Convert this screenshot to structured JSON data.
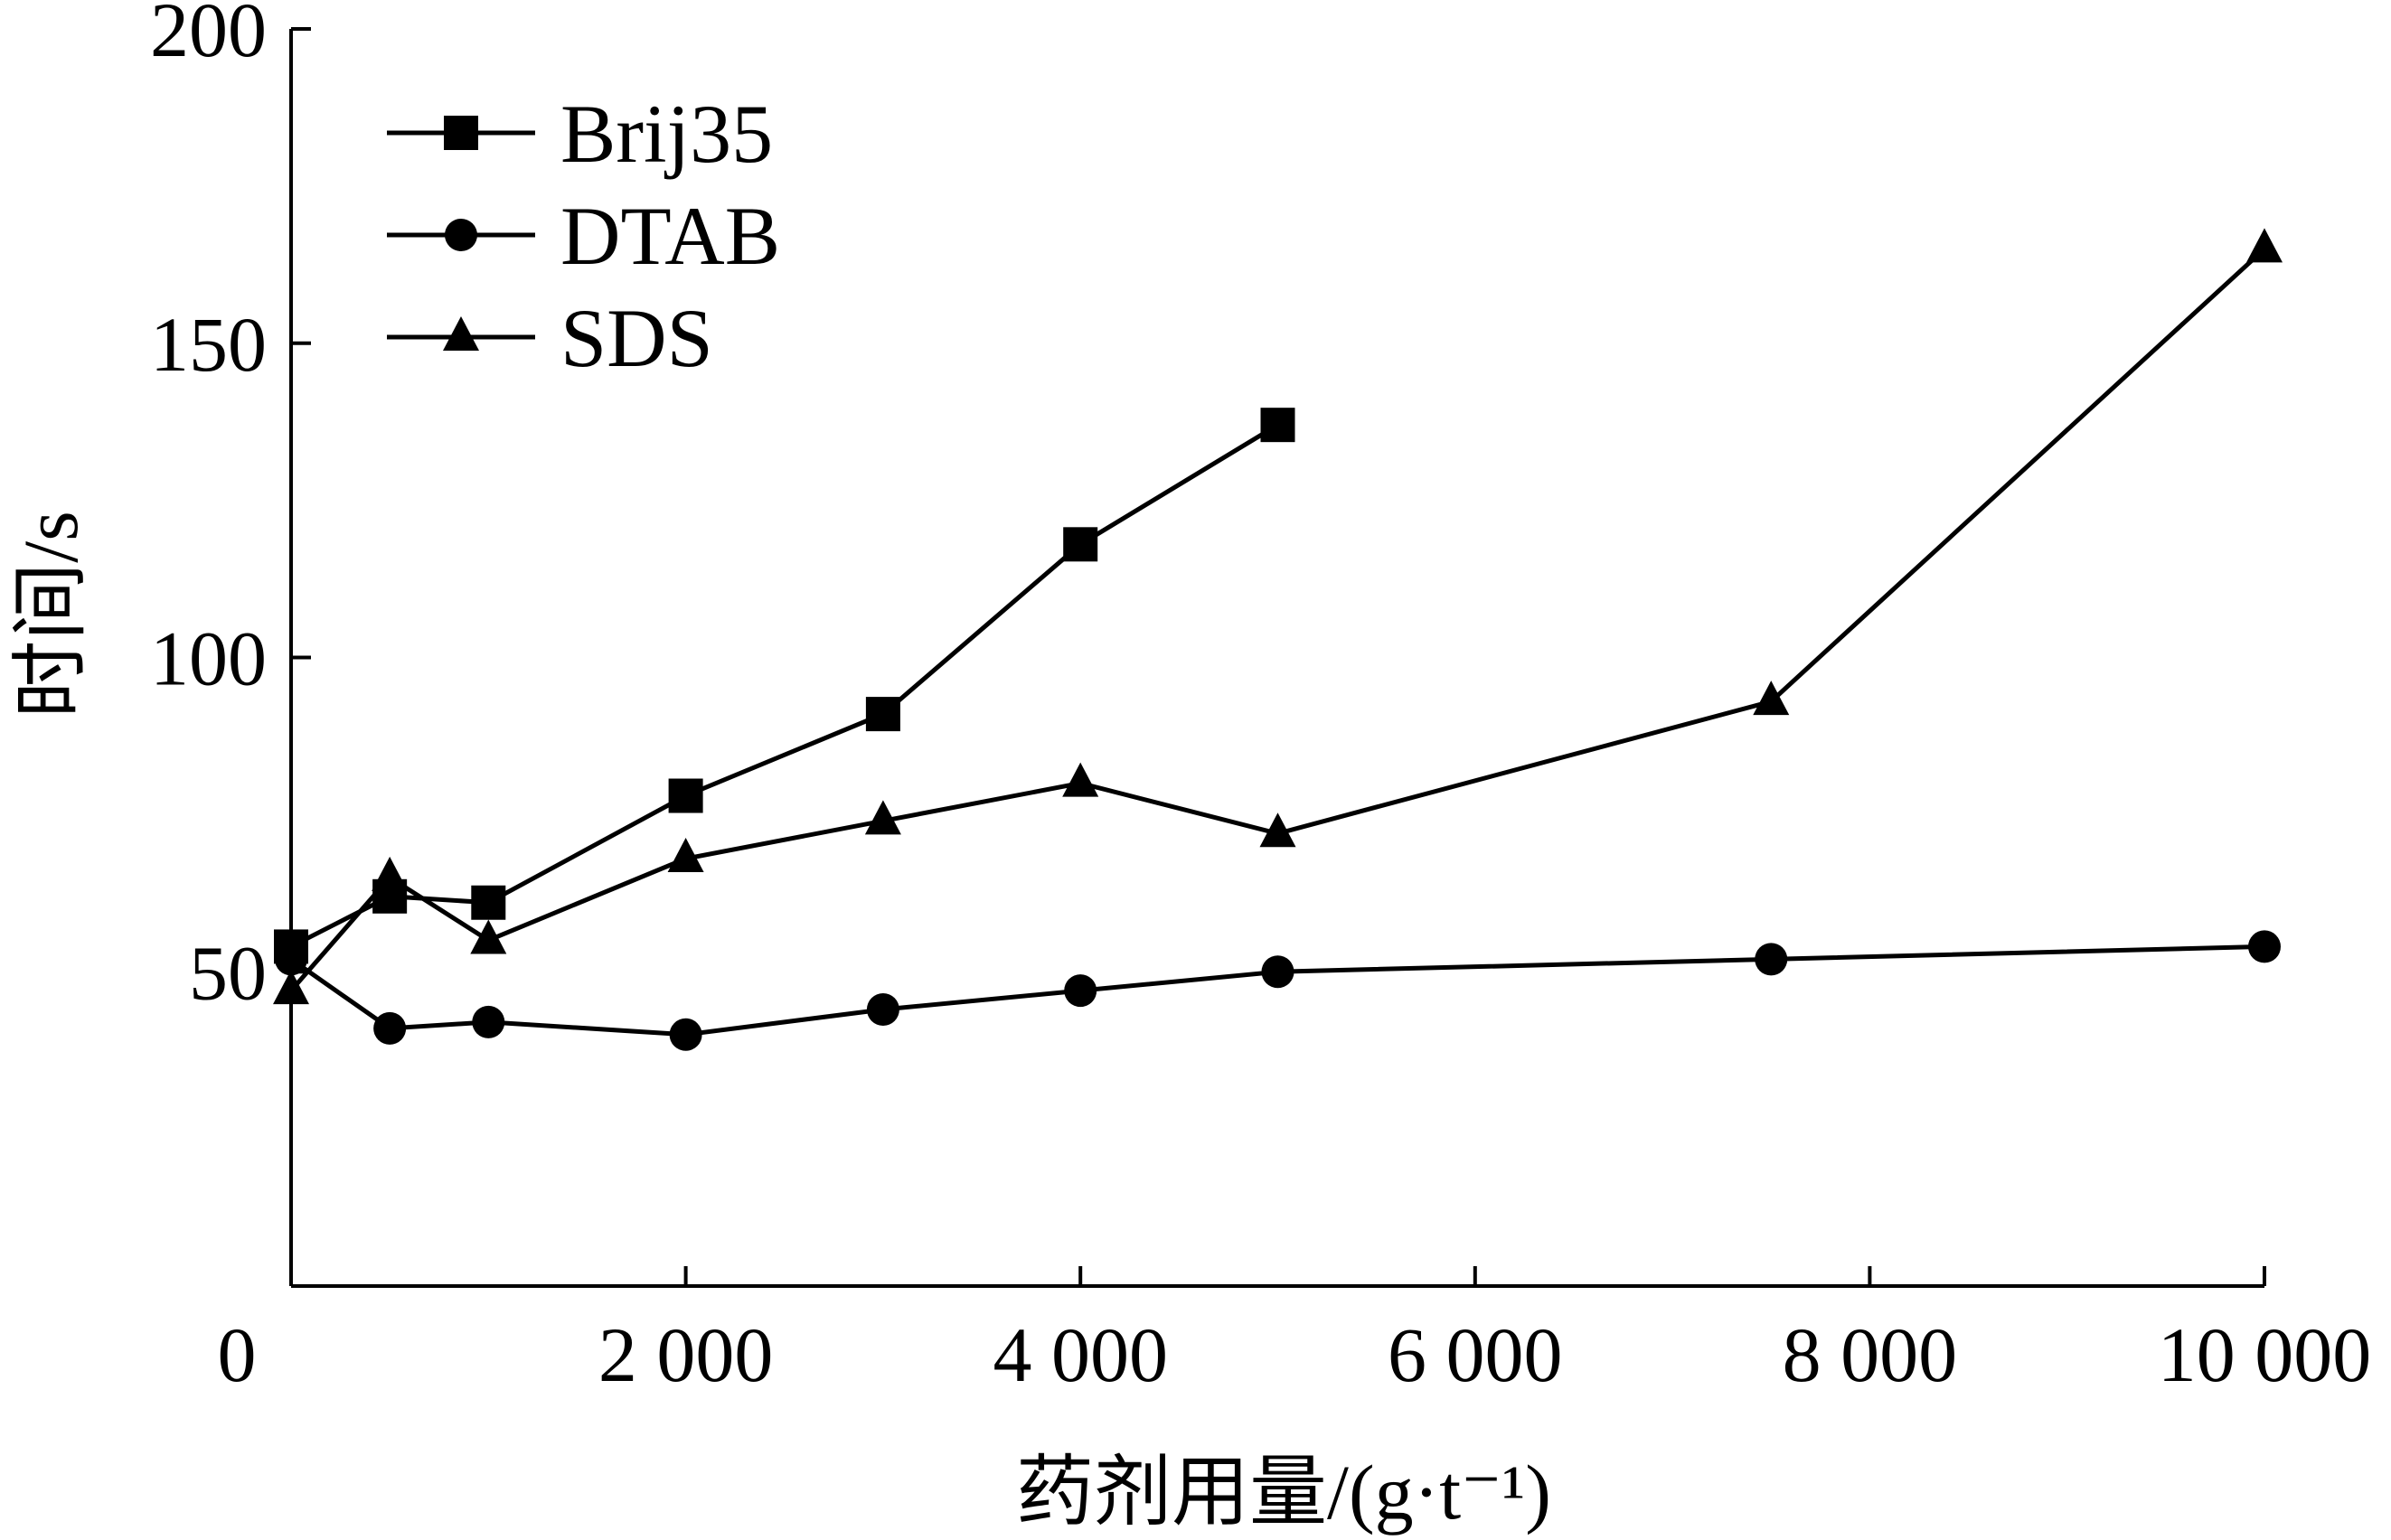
{
  "chart_data": {
    "type": "line",
    "xlabel": "药剂用量/(g·t⁻¹)",
    "ylabel": "时间/s",
    "xlim": [
      0,
      10000
    ],
    "ylim": [
      0,
      200
    ],
    "x_ticks": [
      0,
      2000,
      4000,
      6000,
      8000,
      10000
    ],
    "x_tick_labels": [
      "0",
      "2 000",
      "4 000",
      "6 000",
      "8 000",
      "10 000"
    ],
    "y_ticks": [
      50,
      100,
      150,
      200
    ],
    "y_tick_labels": [
      "50",
      "100",
      "150",
      "200"
    ],
    "grid": false,
    "legend_position": "top-left",
    "series": [
      {
        "name": "Brij35",
        "marker": "square",
        "x": [
          0,
          500,
          1000,
          2000,
          3000,
          4000,
          5000
        ],
        "y": [
          54,
          62,
          61,
          78,
          91,
          118,
          137
        ]
      },
      {
        "name": "DTAB",
        "marker": "circle",
        "x": [
          0,
          500,
          1000,
          2000,
          3000,
          4000,
          5000,
          7500,
          10000
        ],
        "y": [
          52,
          41,
          42,
          40,
          44,
          47,
          50,
          52,
          54
        ]
      },
      {
        "name": "SDS",
        "marker": "triangle",
        "x": [
          0,
          500,
          1000,
          2000,
          3000,
          4000,
          5000,
          7500,
          10000
        ],
        "y": [
          47,
          65,
          55,
          68,
          74,
          80,
          72,
          93,
          165
        ]
      }
    ]
  }
}
